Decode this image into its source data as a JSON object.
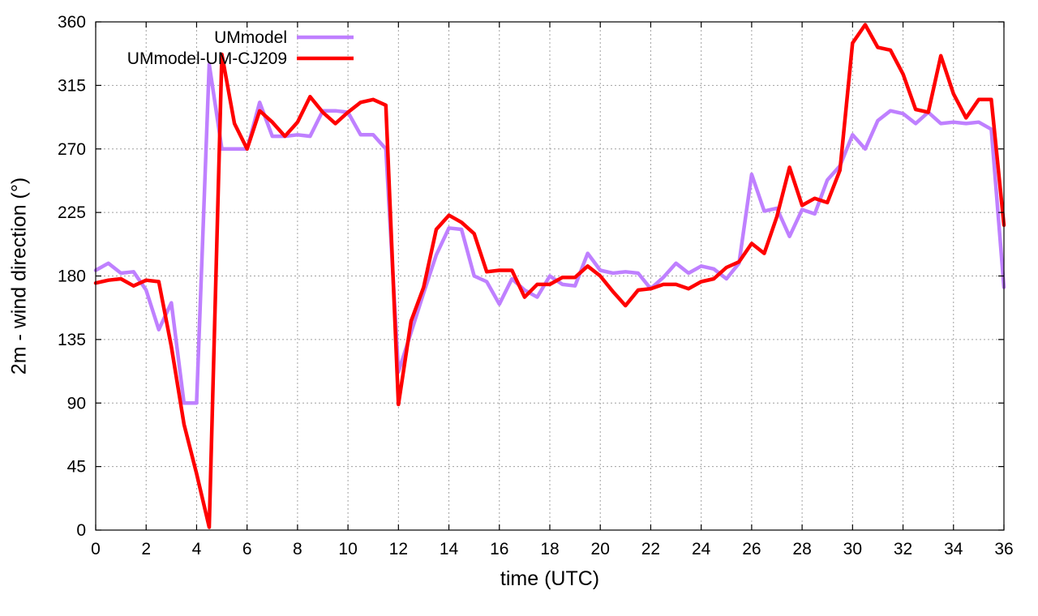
{
  "chart_data": {
    "type": "line",
    "xlabel": "time (UTC)",
    "ylabel": "2m - wind direction (°)",
    "xlim": [
      0,
      36
    ],
    "ylim": [
      0,
      360
    ],
    "xticks": [
      0,
      2,
      4,
      6,
      8,
      10,
      12,
      14,
      16,
      18,
      20,
      22,
      24,
      26,
      28,
      30,
      32,
      34,
      36
    ],
    "yticks": [
      0,
      45,
      90,
      135,
      180,
      225,
      270,
      315,
      360
    ],
    "grid": true,
    "legend_position": "top-left",
    "series": [
      {
        "name": "UMmodel",
        "color": "#bf80ff",
        "points": [
          [
            0,
            184
          ],
          [
            0.5,
            189
          ],
          [
            1,
            182
          ],
          [
            1.5,
            183
          ],
          [
            2,
            170
          ],
          [
            2.5,
            142
          ],
          [
            3,
            161
          ],
          [
            3.5,
            90
          ],
          [
            4,
            90
          ],
          [
            4.5,
            330
          ],
          [
            5,
            270
          ],
          [
            5.5,
            270
          ],
          [
            6,
            270
          ],
          [
            6.5,
            303
          ],
          [
            7,
            279
          ],
          [
            7.5,
            279
          ],
          [
            8,
            280
          ],
          [
            8.5,
            279
          ],
          [
            9,
            297
          ],
          [
            9.5,
            297
          ],
          [
            10,
            296
          ],
          [
            10.5,
            280
          ],
          [
            11,
            280
          ],
          [
            11.5,
            270
          ],
          [
            12,
            112
          ],
          [
            12.5,
            140
          ],
          [
            13,
            168
          ],
          [
            13.5,
            195
          ],
          [
            14,
            214
          ],
          [
            14.5,
            213
          ],
          [
            15,
            180
          ],
          [
            15.5,
            176
          ],
          [
            16,
            160
          ],
          [
            16.5,
            178
          ],
          [
            17,
            170
          ],
          [
            17.5,
            165
          ],
          [
            18,
            180
          ],
          [
            18.5,
            174
          ],
          [
            19,
            173
          ],
          [
            19.5,
            196
          ],
          [
            20,
            184
          ],
          [
            20.5,
            182
          ],
          [
            21,
            183
          ],
          [
            21.5,
            182
          ],
          [
            22,
            171
          ],
          [
            22.5,
            179
          ],
          [
            23,
            189
          ],
          [
            23.5,
            182
          ],
          [
            24,
            187
          ],
          [
            24.5,
            185
          ],
          [
            25,
            178
          ],
          [
            25.5,
            189
          ],
          [
            26,
            252
          ],
          [
            26.5,
            226
          ],
          [
            27,
            228
          ],
          [
            27.5,
            208
          ],
          [
            28,
            227
          ],
          [
            28.5,
            224
          ],
          [
            29,
            248
          ],
          [
            29.5,
            258
          ],
          [
            30,
            280
          ],
          [
            30.5,
            270
          ],
          [
            31,
            290
          ],
          [
            31.5,
            297
          ],
          [
            32,
            295
          ],
          [
            32.5,
            288
          ],
          [
            33,
            296
          ],
          [
            33.5,
            288
          ],
          [
            34,
            289
          ],
          [
            34.5,
            288
          ],
          [
            35,
            289
          ],
          [
            35.5,
            284
          ],
          [
            36,
            172
          ]
        ]
      },
      {
        "name": "UMmodel-UM-CJ209",
        "color": "#ff0000",
        "points": [
          [
            0,
            175
          ],
          [
            0.5,
            177
          ],
          [
            1,
            178
          ],
          [
            1.5,
            173
          ],
          [
            2,
            177
          ],
          [
            2.5,
            176
          ],
          [
            3,
            130
          ],
          [
            3.5,
            75
          ],
          [
            4,
            40
          ],
          [
            4.5,
            2
          ],
          [
            5,
            337
          ],
          [
            5.5,
            288
          ],
          [
            6,
            270
          ],
          [
            6.5,
            297
          ],
          [
            7,
            289
          ],
          [
            7.5,
            279
          ],
          [
            8,
            289
          ],
          [
            8.5,
            307
          ],
          [
            9,
            296
          ],
          [
            9.5,
            288
          ],
          [
            10,
            296
          ],
          [
            10.5,
            303
          ],
          [
            11,
            305
          ],
          [
            11.5,
            301
          ],
          [
            12,
            89
          ],
          [
            12.5,
            148
          ],
          [
            13,
            172
          ],
          [
            13.5,
            213
          ],
          [
            14,
            223
          ],
          [
            14.5,
            218
          ],
          [
            15,
            210
          ],
          [
            15.5,
            183
          ],
          [
            16,
            184
          ],
          [
            16.5,
            184
          ],
          [
            17,
            165
          ],
          [
            17.5,
            174
          ],
          [
            18,
            174
          ],
          [
            18.5,
            179
          ],
          [
            19,
            179
          ],
          [
            19.5,
            187
          ],
          [
            20,
            180
          ],
          [
            20.5,
            169
          ],
          [
            21,
            159
          ],
          [
            21.5,
            170
          ],
          [
            22,
            171
          ],
          [
            22.5,
            174
          ],
          [
            23,
            174
          ],
          [
            23.5,
            171
          ],
          [
            24,
            176
          ],
          [
            24.5,
            178
          ],
          [
            25,
            186
          ],
          [
            25.5,
            190
          ],
          [
            26,
            203
          ],
          [
            26.5,
            196
          ],
          [
            27,
            222
          ],
          [
            27.5,
            257
          ],
          [
            28,
            230
          ],
          [
            28.5,
            235
          ],
          [
            29,
            232
          ],
          [
            29.5,
            255
          ],
          [
            30,
            345
          ],
          [
            30.5,
            358
          ],
          [
            31,
            342
          ],
          [
            31.5,
            340
          ],
          [
            32,
            323
          ],
          [
            32.5,
            298
          ],
          [
            33,
            296
          ],
          [
            33.5,
            336
          ],
          [
            34,
            309
          ],
          [
            34.5,
            292
          ],
          [
            35,
            305
          ],
          [
            35.5,
            305
          ],
          [
            36,
            216
          ]
        ]
      }
    ]
  }
}
